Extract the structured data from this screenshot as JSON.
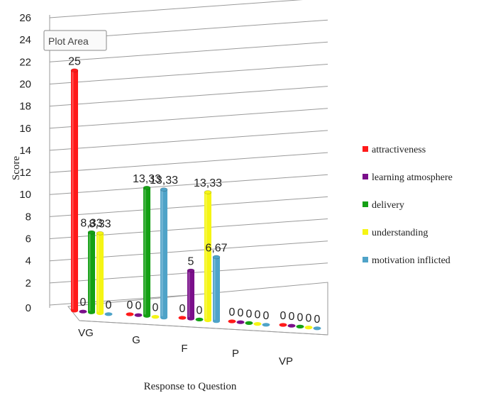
{
  "chart_data": {
    "type": "bar",
    "categories": [
      "VG",
      "G",
      "F",
      "P",
      "VP"
    ],
    "series": [
      {
        "name": "attractiveness",
        "color": "#ff1a1a",
        "values": [
          25,
          0,
          0,
          0,
          0
        ],
        "labels": [
          "25",
          "0",
          "0",
          "0",
          "0"
        ]
      },
      {
        "name": "learning atmosphere",
        "color": "#7a0f8a",
        "values": [
          0,
          0,
          5,
          0,
          0
        ],
        "labels": [
          "0",
          "0",
          "5",
          "0",
          "0"
        ]
      },
      {
        "name": "delivery",
        "color": "#14a014",
        "values": [
          8.33,
          13.33,
          0,
          0,
          0
        ],
        "labels": [
          "8,33",
          "13,33",
          "0",
          "0",
          "0"
        ]
      },
      {
        "name": "understanding",
        "color": "#f5f514",
        "values": [
          8.33,
          0,
          13.33,
          0,
          0
        ],
        "labels": [
          "8,33",
          "0",
          "13,33",
          "0",
          "0"
        ]
      },
      {
        "name": "motivation inflicted",
        "color": "#4fa3c8",
        "values": [
          0,
          13.33,
          6.67,
          0,
          0
        ],
        "labels": [
          "0",
          "13,33",
          "6,67",
          "0",
          "0"
        ]
      }
    ],
    "xlabel": "Response to Question",
    "ylabel": "Score",
    "ylim": [
      0,
      26
    ],
    "yticks": [
      0,
      2,
      4,
      6,
      8,
      10,
      12,
      14,
      16,
      18,
      20,
      22,
      24,
      26
    ],
    "grid": true,
    "legend": "right",
    "tooltip": "Plot Area"
  }
}
